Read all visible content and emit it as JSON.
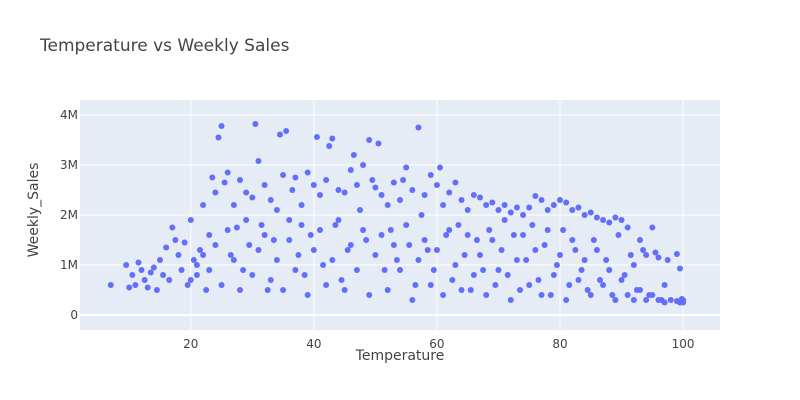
{
  "chart_data": {
    "type": "scatter",
    "title": "Temperature vs Weekly Sales",
    "xlabel": "Temperature",
    "ylabel": "Weekly_Sales",
    "xlim": [
      2,
      106
    ],
    "ylim": [
      -300000,
      4300000
    ],
    "x_ticks": [
      20,
      40,
      60,
      80,
      100
    ],
    "x_tick_labels": [
      "20",
      "40",
      "60",
      "80",
      "100"
    ],
    "y_ticks": [
      0,
      1000000,
      2000000,
      3000000,
      4000000
    ],
    "y_tick_labels": [
      "0",
      "1M",
      "2M",
      "3M",
      "4M"
    ],
    "grid": true,
    "marker_color": "#636efa",
    "plot_bg": "#e5ecf6",
    "points": [
      [
        7,
        600000
      ],
      [
        9.5,
        1000000
      ],
      [
        10,
        550000
      ],
      [
        10.5,
        800000
      ],
      [
        11,
        600000
      ],
      [
        11.5,
        1050000
      ],
      [
        12,
        900000
      ],
      [
        12.5,
        700000
      ],
      [
        13,
        550000
      ],
      [
        13.5,
        850000
      ],
      [
        14,
        950000
      ],
      [
        14.5,
        500000
      ],
      [
        15,
        1100000
      ],
      [
        15.5,
        800000
      ],
      [
        16,
        1350000
      ],
      [
        16.5,
        700000
      ],
      [
        17,
        1750000
      ],
      [
        17.5,
        1500000
      ],
      [
        18,
        1200000
      ],
      [
        18.5,
        900000
      ],
      [
        19,
        1450000
      ],
      [
        19.5,
        600000
      ],
      [
        20,
        1900000
      ],
      [
        20.5,
        1100000
      ],
      [
        21,
        800000
      ],
      [
        21.5,
        1300000
      ],
      [
        22,
        2200000
      ],
      [
        22.5,
        500000
      ],
      [
        23,
        1600000
      ],
      [
        23.5,
        2750000
      ],
      [
        24,
        2450000
      ],
      [
        24.5,
        3550000
      ],
      [
        25,
        3780000
      ],
      [
        25.5,
        2650000
      ],
      [
        26,
        2850000
      ],
      [
        26.5,
        1200000
      ],
      [
        27,
        2200000
      ],
      [
        27.5,
        1750000
      ],
      [
        28,
        2700000
      ],
      [
        28.5,
        900000
      ],
      [
        29,
        2450000
      ],
      [
        29.5,
        1400000
      ],
      [
        30,
        2350000
      ],
      [
        30.5,
        3820000
      ],
      [
        31,
        3080000
      ],
      [
        31.5,
        1800000
      ],
      [
        32,
        2600000
      ],
      [
        32.5,
        500000
      ],
      [
        33,
        2300000
      ],
      [
        33.5,
        1500000
      ],
      [
        34,
        2100000
      ],
      [
        34.5,
        3610000
      ],
      [
        35,
        2800000
      ],
      [
        35.5,
        3680000
      ],
      [
        36,
        1900000
      ],
      [
        36.5,
        2500000
      ],
      [
        37,
        2750000
      ],
      [
        37.5,
        1200000
      ],
      [
        38,
        2200000
      ],
      [
        38.5,
        800000
      ],
      [
        39,
        2850000
      ],
      [
        39.5,
        1600000
      ],
      [
        40,
        2600000
      ],
      [
        40.5,
        3560000
      ],
      [
        41,
        2400000
      ],
      [
        41.5,
        1000000
      ],
      [
        42,
        2700000
      ],
      [
        42.5,
        3380000
      ],
      [
        43,
        3530000
      ],
      [
        43.5,
        1800000
      ],
      [
        44,
        2500000
      ],
      [
        44.5,
        700000
      ],
      [
        45,
        2450000
      ],
      [
        45.5,
        1300000
      ],
      [
        46,
        2900000
      ],
      [
        46.5,
        3200000
      ],
      [
        47,
        2600000
      ],
      [
        47.5,
        2100000
      ],
      [
        48,
        3000000
      ],
      [
        48.5,
        1500000
      ],
      [
        49,
        3500000
      ],
      [
        49.5,
        2700000
      ],
      [
        50,
        2550000
      ],
      [
        50.5,
        3430000
      ],
      [
        51,
        2400000
      ],
      [
        51.5,
        900000
      ],
      [
        52,
        2200000
      ],
      [
        52.5,
        1700000
      ],
      [
        53,
        2650000
      ],
      [
        53.5,
        1100000
      ],
      [
        54,
        2300000
      ],
      [
        54.5,
        2700000
      ],
      [
        55,
        2950000
      ],
      [
        55.5,
        1400000
      ],
      [
        56,
        2500000
      ],
      [
        56.5,
        600000
      ],
      [
        57,
        3750000
      ],
      [
        57.5,
        2000000
      ],
      [
        58,
        2400000
      ],
      [
        58.5,
        1300000
      ],
      [
        59,
        2800000
      ],
      [
        59.5,
        900000
      ],
      [
        60,
        2600000
      ],
      [
        60.5,
        2950000
      ],
      [
        61,
        2200000
      ],
      [
        61.5,
        1600000
      ],
      [
        62,
        2450000
      ],
      [
        62.5,
        700000
      ],
      [
        63,
        2650000
      ],
      [
        63.5,
        1800000
      ],
      [
        64,
        2300000
      ],
      [
        64.5,
        1200000
      ],
      [
        65,
        2100000
      ],
      [
        65.5,
        500000
      ],
      [
        66,
        2400000
      ],
      [
        66.5,
        1500000
      ],
      [
        67,
        2350000
      ],
      [
        67.5,
        900000
      ],
      [
        68,
        2200000
      ],
      [
        68.5,
        1700000
      ],
      [
        69,
        2250000
      ],
      [
        69.5,
        600000
      ],
      [
        70,
        2100000
      ],
      [
        70.5,
        1300000
      ],
      [
        71,
        2200000
      ],
      [
        71.5,
        800000
      ],
      [
        72,
        2050000
      ],
      [
        72.5,
        1600000
      ],
      [
        73,
        2150000
      ],
      [
        73.5,
        500000
      ],
      [
        74,
        2000000
      ],
      [
        74.5,
        1100000
      ],
      [
        75,
        2150000
      ],
      [
        75.5,
        1800000
      ],
      [
        76,
        2380000
      ],
      [
        76.5,
        700000
      ],
      [
        77,
        2300000
      ],
      [
        77.5,
        1400000
      ],
      [
        78,
        2100000
      ],
      [
        78.5,
        400000
      ],
      [
        79,
        2200000
      ],
      [
        79.5,
        1000000
      ],
      [
        80,
        2300000
      ],
      [
        80.5,
        1700000
      ],
      [
        81,
        2250000
      ],
      [
        81.5,
        600000
      ],
      [
        82,
        2100000
      ],
      [
        82.5,
        1300000
      ],
      [
        83,
        2150000
      ],
      [
        83.5,
        900000
      ],
      [
        84,
        2000000
      ],
      [
        84.5,
        500000
      ],
      [
        85,
        2050000
      ],
      [
        85.5,
        1500000
      ],
      [
        86,
        1950000
      ],
      [
        86.5,
        700000
      ],
      [
        87,
        1900000
      ],
      [
        87.5,
        1100000
      ],
      [
        88,
        1850000
      ],
      [
        88.5,
        400000
      ],
      [
        89,
        1950000
      ],
      [
        89.5,
        1600000
      ],
      [
        90,
        1900000
      ],
      [
        90.5,
        800000
      ],
      [
        91,
        1750000
      ],
      [
        91.5,
        1200000
      ],
      [
        92,
        1000000
      ],
      [
        92.5,
        500000
      ],
      [
        93,
        1500000
      ],
      [
        93.5,
        1300000
      ],
      [
        94,
        1200000
      ],
      [
        94.5,
        400000
      ],
      [
        95,
        1750000
      ],
      [
        95.5,
        1250000
      ],
      [
        96,
        1150000
      ],
      [
        96.5,
        300000
      ],
      [
        97,
        600000
      ],
      [
        97.5,
        1100000
      ],
      [
        99,
        1220000
      ],
      [
        99.5,
        930000
      ],
      [
        100,
        300000
      ],
      [
        100,
        250000
      ],
      [
        99.8,
        320000
      ],
      [
        99.5,
        250000
      ],
      [
        20,
        700000
      ],
      [
        21,
        1000000
      ],
      [
        22,
        1200000
      ],
      [
        23,
        900000
      ],
      [
        24,
        1400000
      ],
      [
        25,
        600000
      ],
      [
        26,
        1700000
      ],
      [
        27,
        1100000
      ],
      [
        28,
        500000
      ],
      [
        29,
        1900000
      ],
      [
        30,
        800000
      ],
      [
        31,
        1300000
      ],
      [
        32,
        1600000
      ],
      [
        33,
        700000
      ],
      [
        34,
        1100000
      ],
      [
        35,
        500000
      ],
      [
        36,
        1500000
      ],
      [
        37,
        900000
      ],
      [
        38,
        1800000
      ],
      [
        39,
        400000
      ],
      [
        40,
        1300000
      ],
      [
        41,
        1700000
      ],
      [
        42,
        600000
      ],
      [
        43,
        1100000
      ],
      [
        44,
        1900000
      ],
      [
        45,
        500000
      ],
      [
        46,
        1400000
      ],
      [
        47,
        900000
      ],
      [
        48,
        1700000
      ],
      [
        49,
        400000
      ],
      [
        50,
        1200000
      ],
      [
        51,
        1600000
      ],
      [
        52,
        500000
      ],
      [
        53,
        1400000
      ],
      [
        54,
        900000
      ],
      [
        55,
        1800000
      ],
      [
        56,
        300000
      ],
      [
        57,
        1100000
      ],
      [
        58,
        1500000
      ],
      [
        59,
        600000
      ],
      [
        60,
        1300000
      ],
      [
        61,
        400000
      ],
      [
        62,
        1700000
      ],
      [
        63,
        1000000
      ],
      [
        64,
        500000
      ],
      [
        65,
        1600000
      ],
      [
        66,
        800000
      ],
      [
        67,
        1200000
      ],
      [
        68,
        400000
      ],
      [
        69,
        1500000
      ],
      [
        70,
        900000
      ],
      [
        71,
        1900000
      ],
      [
        72,
        300000
      ],
      [
        73,
        1100000
      ],
      [
        74,
        1600000
      ],
      [
        75,
        600000
      ],
      [
        76,
        1300000
      ],
      [
        77,
        400000
      ],
      [
        78,
        1700000
      ],
      [
        79,
        800000
      ],
      [
        80,
        1200000
      ],
      [
        81,
        300000
      ],
      [
        82,
        1500000
      ],
      [
        83,
        700000
      ],
      [
        84,
        1100000
      ],
      [
        85,
        400000
      ],
      [
        86,
        1300000
      ],
      [
        87,
        600000
      ],
      [
        88,
        900000
      ],
      [
        89,
        300000
      ],
      [
        90,
        700000
      ],
      [
        91,
        400000
      ],
      [
        92,
        300000
      ],
      [
        93,
        500000
      ],
      [
        94,
        300000
      ],
      [
        95,
        400000
      ],
      [
        96,
        300000
      ],
      [
        97,
        250000
      ],
      [
        98,
        300000
      ],
      [
        99,
        280000
      ]
    ]
  }
}
